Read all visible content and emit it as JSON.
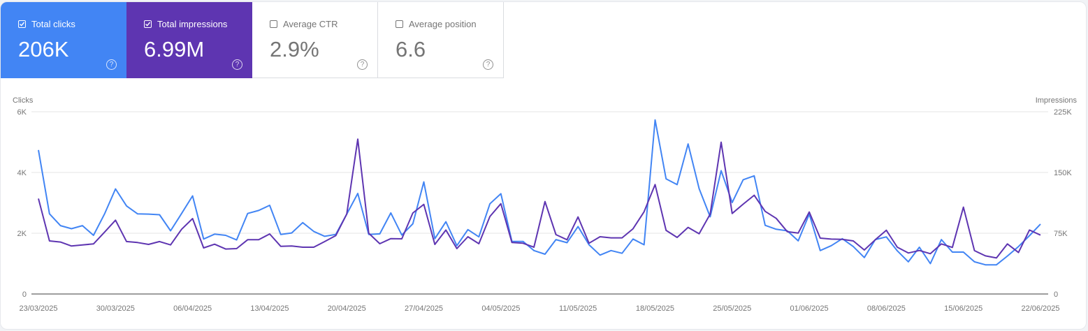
{
  "metrics": [
    {
      "label": "Total clicks",
      "value": "206K",
      "checked": true,
      "color": "#4285f4"
    },
    {
      "label": "Total impressions",
      "value": "6.99M",
      "checked": true,
      "color": "#5e35b1"
    },
    {
      "label": "Average CTR",
      "value": "2.9%",
      "checked": false
    },
    {
      "label": "Average position",
      "value": "6.6",
      "checked": false
    }
  ],
  "help_glyph": "?",
  "chart_data": {
    "type": "line",
    "ylabel_left": "Clicks",
    "ylabel_right": "Impressions",
    "ylim_left": [
      0,
      6000
    ],
    "ylim_right": [
      0,
      225000
    ],
    "yticks_left": [
      "0",
      "2K",
      "4K",
      "6K"
    ],
    "yticks_right": [
      "0",
      "75K",
      "150K",
      "225K"
    ],
    "xticks": [
      "23/03/2025",
      "30/03/2025",
      "06/04/2025",
      "13/04/2025",
      "20/04/2025",
      "27/04/2025",
      "04/05/2025",
      "11/05/2025",
      "18/05/2025",
      "25/05/2025",
      "01/06/2025",
      "08/06/2025",
      "15/06/2025",
      "22/06/2025"
    ],
    "grid": true,
    "x": [
      "23/03/2025",
      "24/03/2025",
      "25/03/2025",
      "26/03/2025",
      "27/03/2025",
      "28/03/2025",
      "29/03/2025",
      "30/03/2025",
      "31/03/2025",
      "01/04/2025",
      "02/04/2025",
      "03/04/2025",
      "04/04/2025",
      "05/04/2025",
      "06/04/2025",
      "07/04/2025",
      "08/04/2025",
      "09/04/2025",
      "10/04/2025",
      "11/04/2025",
      "12/04/2025",
      "13/04/2025",
      "14/04/2025",
      "15/04/2025",
      "16/04/2025",
      "17/04/2025",
      "18/04/2025",
      "19/04/2025",
      "20/04/2025",
      "21/04/2025",
      "22/04/2025",
      "23/04/2025",
      "24/04/2025",
      "25/04/2025",
      "26/04/2025",
      "27/04/2025",
      "28/04/2025",
      "29/04/2025",
      "30/04/2025",
      "01/05/2025",
      "02/05/2025",
      "03/05/2025",
      "04/05/2025",
      "05/05/2025",
      "06/05/2025",
      "07/05/2025",
      "08/05/2025",
      "09/05/2025",
      "10/05/2025",
      "11/05/2025",
      "12/05/2025",
      "13/05/2025",
      "14/05/2025",
      "15/05/2025",
      "16/05/2025",
      "17/05/2025",
      "18/05/2025",
      "19/05/2025",
      "20/05/2025",
      "21/05/2025",
      "22/05/2025",
      "23/05/2025",
      "24/05/2025",
      "25/05/2025",
      "26/05/2025",
      "27/05/2025",
      "28/05/2025",
      "29/05/2025",
      "30/05/2025",
      "31/05/2025",
      "01/06/2025",
      "02/06/2025",
      "03/06/2025",
      "04/06/2025",
      "05/06/2025",
      "06/06/2025",
      "07/06/2025",
      "08/06/2025",
      "09/06/2025",
      "10/06/2025",
      "11/06/2025",
      "12/06/2025",
      "13/06/2025",
      "14/06/2025",
      "15/06/2025",
      "16/06/2025",
      "17/06/2025",
      "18/06/2025",
      "19/06/2025",
      "20/06/2025",
      "21/06/2025",
      "22/06/2025"
    ],
    "series": [
      {
        "name": "Clicks",
        "axis": "left",
        "color": "#4285f4",
        "values": [
          4740,
          2640,
          2250,
          2150,
          2250,
          1930,
          2630,
          3460,
          2900,
          2640,
          2630,
          2610,
          2080,
          2650,
          3230,
          1810,
          1970,
          1930,
          1780,
          2650,
          2750,
          2920,
          1960,
          2010,
          2350,
          2060,
          1900,
          1960,
          2630,
          3310,
          1960,
          1980,
          2670,
          1940,
          2310,
          3690,
          1820,
          2380,
          1590,
          2120,
          1880,
          2970,
          3300,
          1730,
          1730,
          1430,
          1310,
          1790,
          1690,
          2220,
          1620,
          1280,
          1430,
          1340,
          1810,
          1620,
          5730,
          3790,
          3600,
          4940,
          3470,
          2540,
          4060,
          3010,
          3760,
          3890,
          2260,
          2130,
          2080,
          1750,
          2630,
          1430,
          1590,
          1820,
          1560,
          1200,
          1790,
          1880,
          1420,
          1060,
          1540,
          1000,
          1790,
          1380,
          1380,
          1060,
          960,
          960,
          1250,
          1560,
          1920,
          2300
        ]
      },
      {
        "name": "Impressions",
        "axis": "right",
        "color": "#5e35b1",
        "values": [
          117800,
          65500,
          64100,
          59200,
          60600,
          61800,
          76200,
          91100,
          64700,
          63500,
          61200,
          64700,
          60600,
          79900,
          93100,
          56900,
          61500,
          55500,
          56000,
          67000,
          67000,
          74100,
          58900,
          59200,
          57800,
          57800,
          64700,
          72100,
          98600,
          191100,
          75000,
          62100,
          68400,
          68100,
          100000,
          110600,
          61200,
          79000,
          56000,
          70700,
          62100,
          95700,
          111500,
          63500,
          62700,
          57800,
          114100,
          73300,
          67000,
          95100,
          62700,
          70700,
          69300,
          69300,
          80500,
          101500,
          135100,
          78500,
          69800,
          82200,
          74400,
          98600,
          187400,
          99400,
          110900,
          121900,
          102000,
          93400,
          77000,
          75300,
          101200,
          69000,
          67800,
          67500,
          65500,
          54300,
          67000,
          78700,
          57800,
          50600,
          53700,
          49700,
          61800,
          57500,
          107200,
          53500,
          47100,
          44500,
          61800,
          51200,
          79000,
          72700
        ]
      }
    ]
  }
}
